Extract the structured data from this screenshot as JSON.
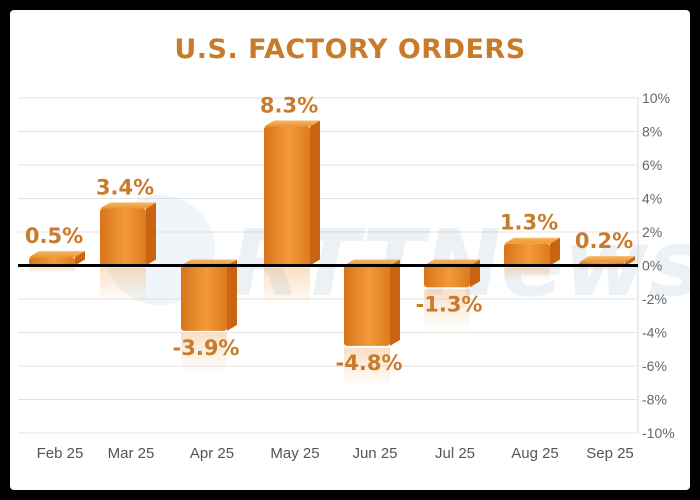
{
  "chart_data": {
    "type": "bar",
    "title": "U.S. FACTORY ORDERS",
    "categories": [
      "Feb 25",
      "Mar 25",
      "Apr 25",
      "May 25",
      "Jun 25",
      "Jul 25",
      "Aug 25",
      "Sep 25"
    ],
    "values": [
      0.5,
      3.4,
      -3.9,
      8.3,
      -4.8,
      -1.3,
      1.3,
      0.2
    ],
    "value_labels": [
      "0.5%",
      "3.4%",
      "-3.9%",
      "8.3%",
      "-4.8%",
      "-1.3%",
      "1.3%",
      "0.2%"
    ],
    "ylim": [
      -10,
      10
    ],
    "yticks": [
      "10%",
      "8%",
      "6%",
      "4%",
      "2%",
      "0%",
      "-2%",
      "-4%",
      "-6%",
      "-8%",
      "-10%"
    ],
    "y_axis_position": "right",
    "grid": true,
    "xlabel": "",
    "ylabel": "",
    "colors": {
      "bar": "#e7861f",
      "title": "#c97b2c",
      "zero_line": "#000000"
    }
  },
  "watermark": {
    "text": "RTTNews"
  }
}
